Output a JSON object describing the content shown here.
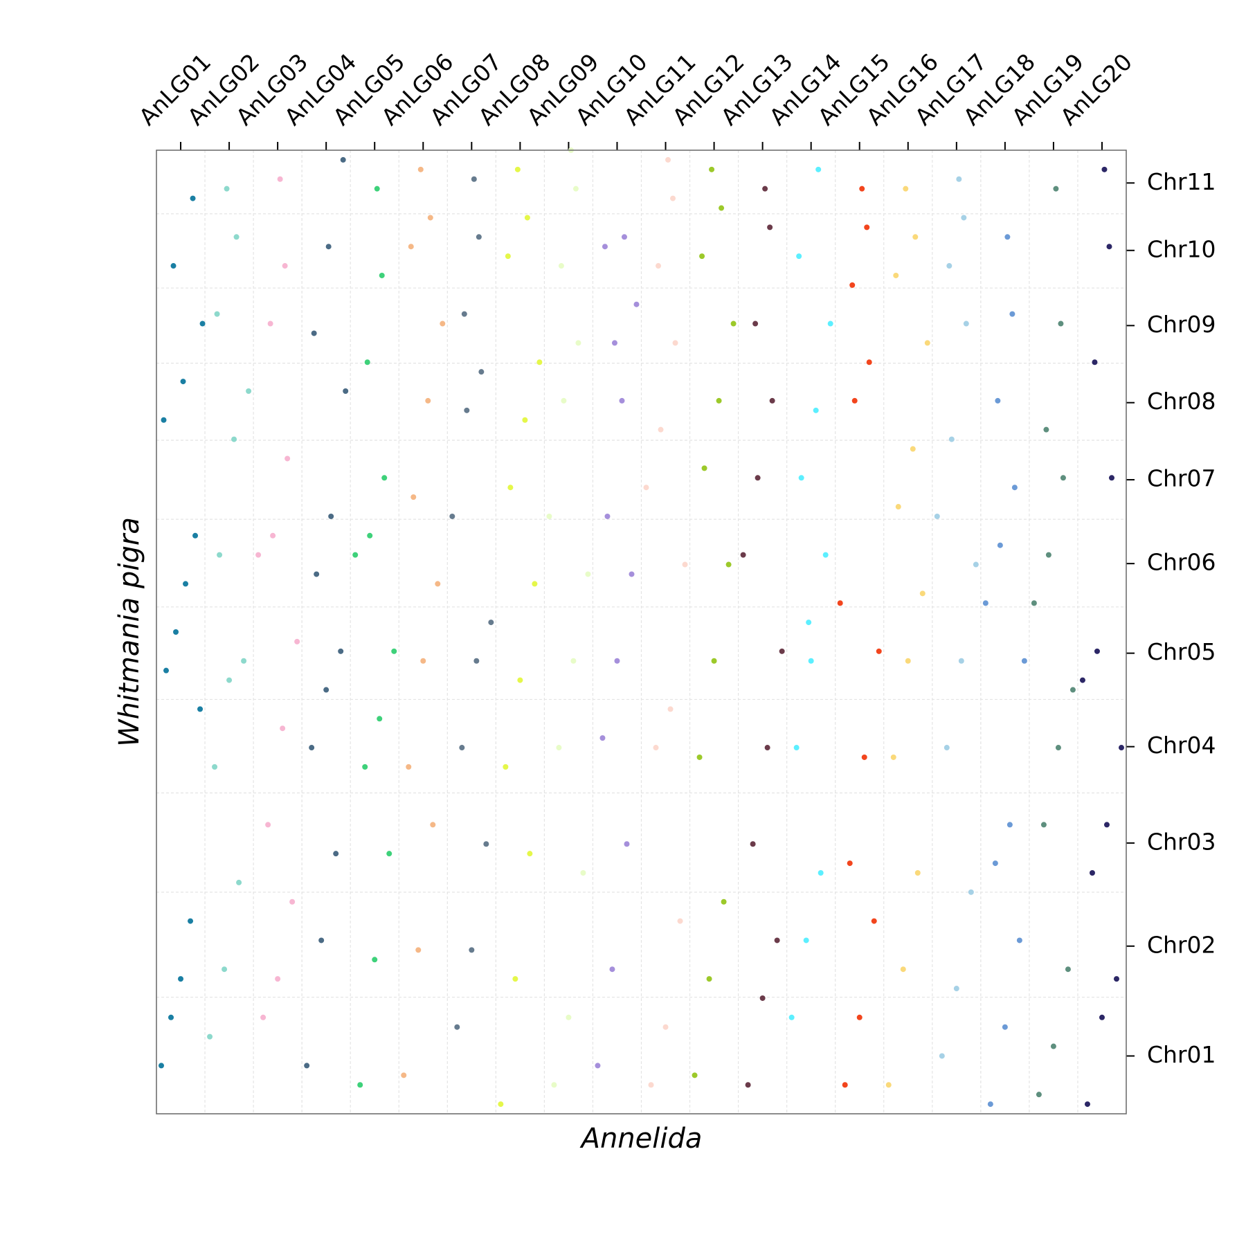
{
  "chart_data": {
    "type": "scatter",
    "xlabel": "Annelida",
    "ylabel": "Whitmania pigra",
    "xlim": [
      0,
      20
    ],
    "ylim": [
      0,
      100
    ],
    "xticks": [
      {
        "value": 0.5,
        "label": "AnLG01"
      },
      {
        "value": 1.5,
        "label": "AnLG02"
      },
      {
        "value": 2.5,
        "label": "AnLG03"
      },
      {
        "value": 3.5,
        "label": "AnLG04"
      },
      {
        "value": 4.5,
        "label": "AnLG05"
      },
      {
        "value": 5.5,
        "label": "AnLG06"
      },
      {
        "value": 6.5,
        "label": "AnLG07"
      },
      {
        "value": 7.5,
        "label": "AnLG08"
      },
      {
        "value": 8.5,
        "label": "AnLG09"
      },
      {
        "value": 9.5,
        "label": "AnLG10"
      },
      {
        "value": 10.5,
        "label": "AnLG11"
      },
      {
        "value": 11.5,
        "label": "AnLG12"
      },
      {
        "value": 12.5,
        "label": "AnLG13"
      },
      {
        "value": 13.5,
        "label": "AnLG14"
      },
      {
        "value": 14.5,
        "label": "AnLG15"
      },
      {
        "value": 15.5,
        "label": "AnLG16"
      },
      {
        "value": 16.5,
        "label": "AnLG17"
      },
      {
        "value": 17.5,
        "label": "AnLG18"
      },
      {
        "value": 18.5,
        "label": "AnLG19"
      },
      {
        "value": 19.5,
        "label": "AnLG20"
      }
    ],
    "yticks": [
      {
        "value": 6.0,
        "label": "Chr01"
      },
      {
        "value": 17.4,
        "label": "Chr02"
      },
      {
        "value": 28.1,
        "label": "Chr03"
      },
      {
        "value": 38.1,
        "label": "Chr04"
      },
      {
        "value": 47.8,
        "label": "Chr05"
      },
      {
        "value": 57.1,
        "label": "Chr06"
      },
      {
        "value": 65.8,
        "label": "Chr07"
      },
      {
        "value": 73.8,
        "label": "Chr08"
      },
      {
        "value": 81.8,
        "label": "Chr09"
      },
      {
        "value": 89.6,
        "label": "Chr10"
      },
      {
        "value": 96.6,
        "label": "Chr11"
      }
    ],
    "xgrid": [
      1,
      2,
      3,
      4,
      5,
      6,
      7,
      8,
      9,
      10,
      11,
      12,
      13,
      14,
      15,
      16,
      17,
      18,
      19
    ],
    "ygrid": [
      12.1,
      23.0,
      33.3,
      43.0,
      52.6,
      61.7,
      69.9,
      77.9,
      85.7,
      93.4
    ],
    "series": [
      {
        "color": "#1a7fa3",
        "x": [
          0.1,
          0.3,
          0.5,
          0.7,
          0.9,
          0.2,
          0.4,
          0.6,
          0.8,
          0.15,
          0.55,
          0.95,
          0.35,
          0.75
        ],
        "y": [
          5,
          10,
          14,
          20,
          42,
          46,
          50,
          55,
          60,
          72,
          76,
          82,
          88,
          95
        ]
      },
      {
        "color": "#8dd9cc",
        "x": [
          1.1,
          1.4,
          1.7,
          1.2,
          1.5,
          1.8,
          1.3,
          1.6,
          1.9,
          1.25,
          1.65,
          1.45
        ],
        "y": [
          8,
          15,
          24,
          36,
          45,
          47,
          58,
          70,
          75,
          83,
          91,
          96
        ]
      },
      {
        "color": "#f7b6d2",
        "x": [
          2.2,
          2.5,
          2.8,
          2.3,
          2.6,
          2.9,
          2.1,
          2.4,
          2.7,
          2.35,
          2.65,
          2.55
        ],
        "y": [
          10,
          14,
          22,
          30,
          40,
          49,
          58,
          60,
          68,
          82,
          88,
          97
        ]
      },
      {
        "color": "#4b6b85",
        "x": [
          3.1,
          3.4,
          3.7,
          3.2,
          3.5,
          3.8,
          3.3,
          3.6,
          3.9,
          3.25,
          3.55,
          3.85
        ],
        "y": [
          5,
          18,
          27,
          38,
          44,
          48,
          56,
          62,
          75,
          81,
          90,
          99
        ]
      },
      {
        "color": "#3ed17a",
        "x": [
          4.2,
          4.5,
          4.8,
          4.3,
          4.6,
          4.9,
          4.1,
          4.4,
          4.7,
          4.35,
          4.65,
          4.55
        ],
        "y": [
          3,
          16,
          27,
          36,
          41,
          48,
          58,
          60,
          66,
          78,
          87,
          96
        ]
      },
      {
        "color": "#f5b887",
        "x": [
          5.1,
          5.4,
          5.7,
          5.2,
          5.5,
          5.8,
          5.3,
          5.6,
          5.9,
          5.25,
          5.65,
          5.45
        ],
        "y": [
          4,
          17,
          30,
          36,
          47,
          55,
          64,
          74,
          82,
          90,
          93,
          98
        ]
      },
      {
        "color": "#667b8e",
        "x": [
          6.2,
          6.5,
          6.8,
          6.3,
          6.6,
          6.9,
          6.1,
          6.4,
          6.7,
          6.35,
          6.65,
          6.55
        ],
        "y": [
          9,
          17,
          28,
          38,
          47,
          51,
          62,
          73,
          77,
          83,
          91,
          97
        ]
      },
      {
        "color": "#e5f74a",
        "x": [
          7.1,
          7.4,
          7.7,
          7.2,
          7.5,
          7.8,
          7.3,
          7.6,
          7.9,
          7.25,
          7.65,
          7.45
        ],
        "y": [
          1,
          14,
          27,
          36,
          45,
          55,
          65,
          72,
          78,
          89,
          93,
          98
        ]
      },
      {
        "color": "#e8fcc8",
        "x": [
          8.2,
          8.5,
          8.8,
          8.3,
          8.6,
          8.9,
          8.1,
          8.4,
          8.7,
          8.35,
          8.65,
          8.55
        ],
        "y": [
          3,
          10,
          25,
          38,
          47,
          56,
          62,
          74,
          80,
          88,
          96,
          100
        ]
      },
      {
        "color": "#a58fdb",
        "x": [
          9.1,
          9.4,
          9.7,
          9.2,
          9.5,
          9.8,
          9.3,
          9.6,
          9.9,
          9.25,
          9.65,
          9.45
        ],
        "y": [
          5,
          15,
          28,
          39,
          47,
          56,
          62,
          74,
          84,
          90,
          91,
          80
        ]
      },
      {
        "color": "#fcd9cf",
        "x": [
          10.2,
          10.5,
          10.8,
          10.3,
          10.6,
          10.9,
          10.1,
          10.4,
          10.7,
          10.35,
          10.65,
          10.55
        ],
        "y": [
          3,
          9,
          20,
          38,
          42,
          57,
          65,
          71,
          80,
          88,
          95,
          99
        ]
      },
      {
        "color": "#9cc92a",
        "x": [
          11.1,
          11.4,
          11.7,
          11.2,
          11.5,
          11.8,
          11.3,
          11.6,
          11.9,
          11.25,
          11.65,
          11.45
        ],
        "y": [
          4,
          14,
          22,
          37,
          47,
          57,
          67,
          74,
          82,
          89,
          94,
          98
        ]
      },
      {
        "color": "#6b3b4a",
        "x": [
          12.2,
          12.5,
          12.8,
          12.3,
          12.6,
          12.9,
          12.1,
          12.4,
          12.7,
          12.35,
          12.65,
          12.55
        ],
        "y": [
          3,
          12,
          18,
          28,
          38,
          48,
          58,
          66,
          74,
          82,
          92,
          96
        ]
      },
      {
        "color": "#5cefff",
        "x": [
          13.1,
          13.4,
          13.7,
          13.2,
          13.5,
          13.8,
          13.3,
          13.6,
          13.9,
          13.25,
          13.65,
          13.45
        ],
        "y": [
          10,
          18,
          25,
          38,
          47,
          58,
          66,
          73,
          82,
          89,
          98,
          51
        ]
      },
      {
        "color": "#f2451d",
        "x": [
          14.2,
          14.5,
          14.8,
          14.3,
          14.6,
          14.9,
          14.1,
          14.4,
          14.7,
          14.35,
          14.65,
          14.55
        ],
        "y": [
          3,
          10,
          20,
          26,
          37,
          48,
          53,
          74,
          78,
          86,
          92,
          96
        ]
      },
      {
        "color": "#fad97a",
        "x": [
          15.1,
          15.4,
          15.7,
          15.2,
          15.5,
          15.8,
          15.3,
          15.6,
          15.9,
          15.25,
          15.65,
          15.45
        ],
        "y": [
          3,
          15,
          25,
          37,
          47,
          54,
          63,
          69,
          80,
          87,
          91,
          96
        ]
      },
      {
        "color": "#a6d1e6",
        "x": [
          16.2,
          16.5,
          16.8,
          16.3,
          16.6,
          16.9,
          16.1,
          16.4,
          16.7,
          16.35,
          16.65,
          16.55
        ],
        "y": [
          6,
          13,
          23,
          38,
          47,
          57,
          62,
          70,
          82,
          88,
          93,
          97
        ]
      },
      {
        "color": "#6b9ad6",
        "x": [
          17.2,
          17.5,
          17.8,
          17.3,
          17.6,
          17.9,
          17.1,
          17.4,
          17.7,
          17.35,
          17.65,
          17.55
        ],
        "y": [
          1,
          9,
          18,
          26,
          30,
          47,
          53,
          59,
          65,
          74,
          83,
          91
        ]
      },
      {
        "color": "#5e8f7e",
        "x": [
          18.2,
          18.5,
          18.8,
          18.3,
          18.6,
          18.9,
          18.1,
          18.4,
          18.7,
          18.35,
          18.65,
          18.55
        ],
        "y": [
          2,
          7,
          15,
          30,
          38,
          44,
          53,
          58,
          66,
          71,
          82,
          96
        ]
      },
      {
        "color": "#2c2766",
        "x": [
          19.2,
          19.5,
          19.8,
          19.3,
          19.6,
          19.9,
          19.1,
          19.4,
          19.7,
          19.35,
          19.65,
          19.55
        ],
        "y": [
          1,
          10,
          14,
          25,
          30,
          38,
          45,
          48,
          66,
          78,
          90,
          98
        ]
      }
    ]
  }
}
